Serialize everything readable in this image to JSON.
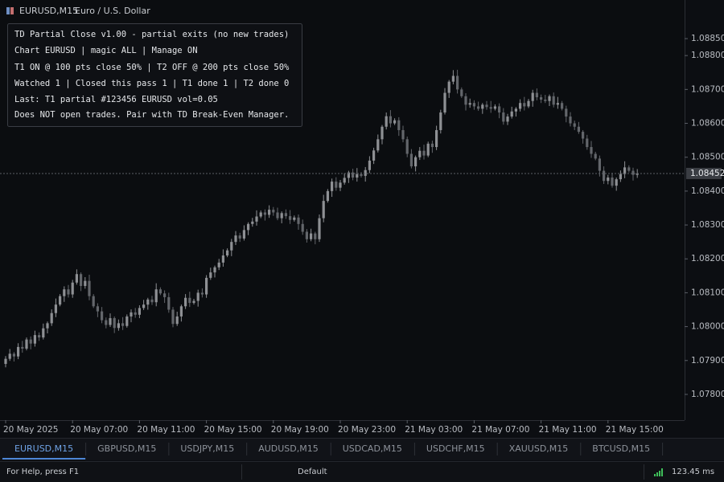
{
  "header": {
    "symbol": "EURUSD,M15",
    "description": "Euro / U.S. Dollar"
  },
  "info_panel": {
    "lines": [
      "TD Partial Close v1.00 - partial exits (no new trades)",
      "Chart EURUSD | magic ALL | Manage ON",
      "T1 ON @ 100 pts close 50% | T2 OFF @ 200 pts close 50%",
      "Watched 1 | Closed this pass 1 | T1 done 1 | T2 done 0",
      "Last: T1 partial #123456 EURUSD vol=0.05",
      "Does NOT open trades. Pair with TD Break-Even Manager."
    ]
  },
  "chart_data": {
    "type": "candlestick",
    "categories": [
      "20 May 2025",
      null,
      null,
      null,
      null,
      null,
      null,
      null,
      null,
      null,
      null,
      null,
      null,
      null,
      null,
      null,
      "20 May 07:00",
      null,
      null,
      null,
      null,
      null,
      null,
      null,
      null,
      null,
      null,
      null,
      null,
      null,
      null,
      null,
      "20 May 11:00",
      null,
      null,
      null,
      null,
      null,
      null,
      null,
      null,
      null,
      null,
      null,
      null,
      null,
      null,
      null,
      "20 May 15:00",
      null,
      null,
      null,
      null,
      null,
      null,
      null,
      null,
      null,
      null,
      null,
      null,
      null,
      null,
      null,
      "20 May 19:00",
      null,
      null,
      null,
      null,
      null,
      null,
      null,
      null,
      null,
      null,
      null,
      null,
      null,
      null,
      null,
      "20 May 23:00",
      null,
      null,
      null,
      null,
      null,
      null,
      null,
      null,
      null,
      null,
      null,
      null,
      null,
      null,
      null,
      "21 May 03:00",
      null,
      null,
      null,
      null,
      null,
      null,
      null,
      null,
      null,
      null,
      null,
      null,
      null,
      null,
      null,
      "21 May 07:00",
      null,
      null,
      null,
      null,
      null,
      null,
      null,
      null,
      null,
      null,
      null,
      null,
      null,
      null,
      null,
      "21 May 11:00",
      null,
      null,
      null,
      null,
      null,
      null,
      null,
      null,
      null,
      null,
      null,
      null,
      null,
      null,
      null,
      "21 May 15:00",
      null,
      null,
      null,
      null,
      null,
      null,
      null
    ],
    "ohlc": [
      [
        1.0789,
        1.07913,
        1.0788,
        1.07905
      ],
      [
        1.07905,
        1.07934,
        1.07899,
        1.0792
      ],
      [
        1.0792,
        1.07925,
        1.07897,
        1.07912
      ],
      [
        1.07912,
        1.07951,
        1.07904,
        1.0794
      ],
      [
        1.0794,
        1.07958,
        1.07923,
        1.07935
      ],
      [
        1.07935,
        1.07968,
        1.0793,
        1.07962
      ],
      [
        1.07962,
        1.07971,
        1.07933,
        1.0795
      ],
      [
        1.0795,
        1.07988,
        1.07941,
        1.07975
      ],
      [
        1.07975,
        1.07983,
        1.07958,
        1.07968
      ],
      [
        1.07968,
        1.08009,
        1.07962,
        1.07995
      ],
      [
        1.07995,
        1.08015,
        1.0798,
        1.0801
      ],
      [
        1.0801,
        1.08051,
        1.08002,
        1.0804
      ],
      [
        1.0804,
        1.08083,
        1.08028,
        1.08065
      ],
      [
        1.08065,
        1.08096,
        1.0806,
        1.0809
      ],
      [
        1.0809,
        1.08119,
        1.08073,
        1.0811
      ],
      [
        1.0811,
        1.08123,
        1.08086,
        1.08095
      ],
      [
        1.08095,
        1.08138,
        1.08085,
        1.0813
      ],
      [
        1.0813,
        1.08169,
        1.08124,
        1.08155
      ],
      [
        1.08155,
        1.0816,
        1.08105,
        1.0812
      ],
      [
        1.0812,
        1.08146,
        1.08112,
        1.08135
      ],
      [
        1.08135,
        1.08153,
        1.08078,
        1.0809
      ],
      [
        1.0809,
        1.08096,
        1.08055,
        1.0806
      ],
      [
        1.0806,
        1.08069,
        1.08028,
        1.08045
      ],
      [
        1.08045,
        1.08058,
        1.0801,
        1.08019
      ],
      [
        1.08019,
        1.08027,
        1.07995,
        1.08005
      ],
      [
        1.08005,
        1.08039,
        1.07999,
        1.08025
      ],
      [
        1.08025,
        1.0803,
        1.07981,
        1.07996
      ],
      [
        1.07996,
        1.08021,
        1.07988,
        1.0801
      ],
      [
        1.0801,
        1.08028,
        1.0799,
        1.08002
      ],
      [
        1.08002,
        1.08036,
        1.07997,
        1.0803
      ],
      [
        1.0803,
        1.08051,
        1.08013,
        1.08042
      ],
      [
        1.08042,
        1.08055,
        1.08026,
        1.08035
      ],
      [
        1.08035,
        1.08063,
        1.08025,
        1.08055
      ],
      [
        1.08055,
        1.08079,
        1.08049,
        1.08065
      ],
      [
        1.08065,
        1.08085,
        1.0805,
        1.0808
      ],
      [
        1.0808,
        1.08091,
        1.08064,
        1.08072
      ],
      [
        1.08072,
        1.08128,
        1.0806,
        1.0811
      ],
      [
        1.0811,
        1.08116,
        1.08093,
        1.08098
      ],
      [
        1.08098,
        1.08107,
        1.0807,
        1.08087
      ],
      [
        1.08087,
        1.081,
        1.08041,
        1.0805
      ],
      [
        1.0805,
        1.08058,
        1.07998,
        1.08008
      ],
      [
        1.08008,
        1.08044,
        1.08002,
        1.0803
      ],
      [
        1.0803,
        1.08065,
        1.08015,
        1.0806
      ],
      [
        1.0806,
        1.08096,
        1.08052,
        1.08085
      ],
      [
        1.08085,
        1.08103,
        1.08058,
        1.0807
      ],
      [
        1.0807,
        1.08082,
        1.08065,
        1.08076
      ],
      [
        1.08076,
        1.08109,
        1.08059,
        1.081
      ],
      [
        1.081,
        1.08113,
        1.08086,
        1.08095
      ],
      [
        1.08095,
        1.08152,
        1.08085,
        1.08144
      ],
      [
        1.08144,
        1.08174,
        1.08138,
        1.0816
      ],
      [
        1.0816,
        1.0818,
        1.08145,
        1.08175
      ],
      [
        1.08175,
        1.082,
        1.08167,
        1.08189
      ],
      [
        1.08189,
        1.08228,
        1.08177,
        1.0821
      ],
      [
        1.0821,
        1.08231,
        1.08205,
        1.08225
      ],
      [
        1.08225,
        1.08259,
        1.08208,
        1.0825
      ],
      [
        1.0825,
        1.08282,
        1.08241,
        1.08269
      ],
      [
        1.08269,
        1.08277,
        1.0825,
        1.0826
      ],
      [
        1.0826,
        1.08299,
        1.08254,
        1.08285
      ],
      [
        1.08285,
        1.08308,
        1.0827,
        1.08303
      ],
      [
        1.08303,
        1.08321,
        1.08295,
        1.0831
      ],
      [
        1.0831,
        1.08343,
        1.08298,
        1.08325
      ],
      [
        1.08325,
        1.08343,
        1.0832,
        1.08337
      ],
      [
        1.08337,
        1.08346,
        1.08313,
        1.0833
      ],
      [
        1.0833,
        1.08358,
        1.08321,
        1.08345
      ],
      [
        1.08345,
        1.08353,
        1.08327,
        1.08337
      ],
      [
        1.08337,
        1.08351,
        1.08314,
        1.0832
      ],
      [
        1.0832,
        1.0834,
        1.08305,
        1.08335
      ],
      [
        1.08335,
        1.08346,
        1.08318,
        1.08326
      ],
      [
        1.08326,
        1.08344,
        1.08303,
        1.08315
      ],
      [
        1.08315,
        1.08328,
        1.0831,
        1.08322
      ],
      [
        1.08322,
        1.08331,
        1.08286,
        1.08303
      ],
      [
        1.08303,
        1.08316,
        1.08271,
        1.0828
      ],
      [
        1.0828,
        1.08288,
        1.08248,
        1.08258
      ],
      [
        1.08258,
        1.08289,
        1.08252,
        1.08275
      ],
      [
        1.08275,
        1.0828,
        1.08243,
        1.08258
      ],
      [
        1.08258,
        1.08331,
        1.0825,
        1.0832
      ],
      [
        1.0832,
        1.08389,
        1.08308,
        1.08371
      ],
      [
        1.08371,
        1.08406,
        1.08366,
        1.084
      ],
      [
        1.084,
        1.08437,
        1.08383,
        1.08428
      ],
      [
        1.08428,
        1.08441,
        1.08401,
        1.0841
      ],
      [
        1.0841,
        1.08433,
        1.084,
        1.08425
      ],
      [
        1.08425,
        1.08453,
        1.08419,
        1.08439
      ],
      [
        1.08439,
        1.0846,
        1.08424,
        1.08455
      ],
      [
        1.08455,
        1.08466,
        1.08432,
        1.0844
      ],
      [
        1.0844,
        1.08468,
        1.08428,
        1.0845
      ],
      [
        1.0845,
        1.08456,
        1.0844,
        1.08445
      ],
      [
        1.08445,
        1.08471,
        1.08428,
        1.08462
      ],
      [
        1.08462,
        1.08503,
        1.08453,
        1.0849
      ],
      [
        1.0849,
        1.08528,
        1.0848,
        1.0852
      ],
      [
        1.0852,
        1.08567,
        1.08514,
        1.08553
      ],
      [
        1.08553,
        1.08595,
        1.08538,
        1.0859
      ],
      [
        1.0859,
        1.08632,
        1.08582,
        1.08621
      ],
      [
        1.08621,
        1.08639,
        1.08588,
        1.086
      ],
      [
        1.086,
        1.08615,
        1.08595,
        1.08609
      ],
      [
        1.08609,
        1.08618,
        1.08563,
        1.0858
      ],
      [
        1.0858,
        1.08593,
        1.08544,
        1.08553
      ],
      [
        1.08553,
        1.08561,
        1.085,
        1.0851
      ],
      [
        1.0851,
        1.08524,
        1.08467,
        1.08473
      ],
      [
        1.08473,
        1.08505,
        1.08458,
        1.085
      ],
      [
        1.085,
        1.0853,
        1.08492,
        1.08519
      ],
      [
        1.08519,
        1.08537,
        1.08493,
        1.08505
      ],
      [
        1.08505,
        1.08546,
        1.085,
        1.0854
      ],
      [
        1.0854,
        1.08549,
        1.08513,
        1.0853
      ],
      [
        1.0853,
        1.08593,
        1.08521,
        1.0858
      ],
      [
        1.0858,
        1.0864,
        1.0857,
        1.08632
      ],
      [
        1.08632,
        1.08704,
        1.08626,
        1.0869
      ],
      [
        1.0869,
        1.08728,
        1.08675,
        1.08723
      ],
      [
        1.08723,
        1.08757,
        1.08715,
        1.0874
      ],
      [
        1.0874,
        1.08758,
        1.08688,
        1.087
      ],
      [
        1.087,
        1.08706,
        1.08675,
        1.0868
      ],
      [
        1.0868,
        1.08689,
        1.08638,
        1.08655
      ],
      [
        1.08655,
        1.08673,
        1.08646,
        1.0866
      ],
      [
        1.0866,
        1.08668,
        1.0864,
        1.0865
      ],
      [
        1.0865,
        1.08664,
        1.08637,
        1.08643
      ],
      [
        1.08643,
        1.0866,
        1.08628,
        1.08655
      ],
      [
        1.08655,
        1.08666,
        1.0864,
        1.08648
      ],
      [
        1.08648,
        1.08666,
        1.08631,
        1.08643
      ],
      [
        1.08643,
        1.08656,
        1.08638,
        1.0865
      ],
      [
        1.0865,
        1.08659,
        1.08615,
        1.08632
      ],
      [
        1.08632,
        1.08645,
        1.08596,
        1.08605
      ],
      [
        1.08605,
        1.08628,
        1.08595,
        1.0862
      ],
      [
        1.0862,
        1.08649,
        1.08614,
        1.08635
      ],
      [
        1.08635,
        1.08648,
        1.0862,
        1.08643
      ],
      [
        1.08643,
        1.08671,
        1.08635,
        1.0866
      ],
      [
        1.0866,
        1.08678,
        1.08638,
        1.0865
      ],
      [
        1.0865,
        1.08672,
        1.08645,
        1.08666
      ],
      [
        1.08666,
        1.08699,
        1.08649,
        1.0869
      ],
      [
        1.0869,
        1.08703,
        1.08668,
        1.08677
      ],
      [
        1.08677,
        1.08685,
        1.0866,
        1.0867
      ],
      [
        1.0867,
        1.08684,
        1.0866,
        1.08666
      ],
      [
        1.08666,
        1.08685,
        1.08651,
        1.0868
      ],
      [
        1.0868,
        1.08691,
        1.08647,
        1.08655
      ],
      [
        1.08655,
        1.08678,
        1.08643,
        1.0866
      ],
      [
        1.0866,
        1.08666,
        1.08638,
        1.08643
      ],
      [
        1.08643,
        1.08652,
        1.08603,
        1.0862
      ],
      [
        1.0862,
        1.08633,
        1.08591,
        1.086
      ],
      [
        1.086,
        1.08608,
        1.0858,
        1.0859
      ],
      [
        1.0859,
        1.08604,
        1.08569,
        1.08575
      ],
      [
        1.08575,
        1.0858,
        1.0854,
        1.08555
      ],
      [
        1.08555,
        1.08566,
        1.08522,
        1.0853
      ],
      [
        1.0853,
        1.08548,
        1.08498,
        1.0851
      ],
      [
        1.0851,
        1.08516,
        1.08491,
        1.08496
      ],
      [
        1.08496,
        1.08505,
        1.08443,
        1.0846
      ],
      [
        1.0846,
        1.08473,
        1.08421,
        1.0843
      ],
      [
        1.0843,
        1.08448,
        1.0842,
        1.0844
      ],
      [
        1.0844,
        1.08454,
        1.0841,
        1.08416
      ],
      [
        1.08416,
        1.0844,
        1.08401,
        1.08435
      ],
      [
        1.08435,
        1.08461,
        1.08427,
        1.0845
      ],
      [
        1.0845,
        1.08488,
        1.08438,
        1.0847
      ],
      [
        1.0847,
        1.08476,
        1.08455,
        1.0846
      ],
      [
        1.0846,
        1.08469,
        1.08431,
        1.08448
      ],
      [
        1.08448,
        1.08465,
        1.08439,
        1.08452
      ]
    ],
    "ylim": [
      1.07724,
      1.08964
    ],
    "yticks": [
      {
        "value": 1.0885,
        "label": "1.08850"
      },
      {
        "value": 1.088,
        "label": "1.08800"
      },
      {
        "value": 1.087,
        "label": "1.08700"
      },
      {
        "value": 1.086,
        "label": "1.08600"
      },
      {
        "value": 1.085,
        "label": "1.08500"
      },
      {
        "value": 1.084,
        "label": "1.08400"
      },
      {
        "value": 1.083,
        "label": "1.08300"
      },
      {
        "value": 1.082,
        "label": "1.08200"
      },
      {
        "value": 1.081,
        "label": "1.08100"
      },
      {
        "value": 1.08,
        "label": "1.08000"
      },
      {
        "value": 1.079,
        "label": "1.07900"
      },
      {
        "value": 1.078,
        "label": "1.07800"
      }
    ],
    "current_price": 1.08452,
    "up_color": "#8e9094",
    "down_color": "#63666b",
    "grid": false
  },
  "tabs": [
    {
      "label": "EURUSD,M15",
      "active": true
    },
    {
      "label": "GBPUSD,M15",
      "active": false
    },
    {
      "label": "USDJPY,M15",
      "active": false
    },
    {
      "label": "AUDUSD,M15",
      "active": false
    },
    {
      "label": "USDCAD,M15",
      "active": false
    },
    {
      "label": "USDCHF,M15",
      "active": false
    },
    {
      "label": "XAUUSD,M15",
      "active": false
    },
    {
      "label": "BTCUSD,M15",
      "active": false
    }
  ],
  "status": {
    "help": "For Help, press F1",
    "profile": "Default",
    "ping": "123.45 ms"
  }
}
